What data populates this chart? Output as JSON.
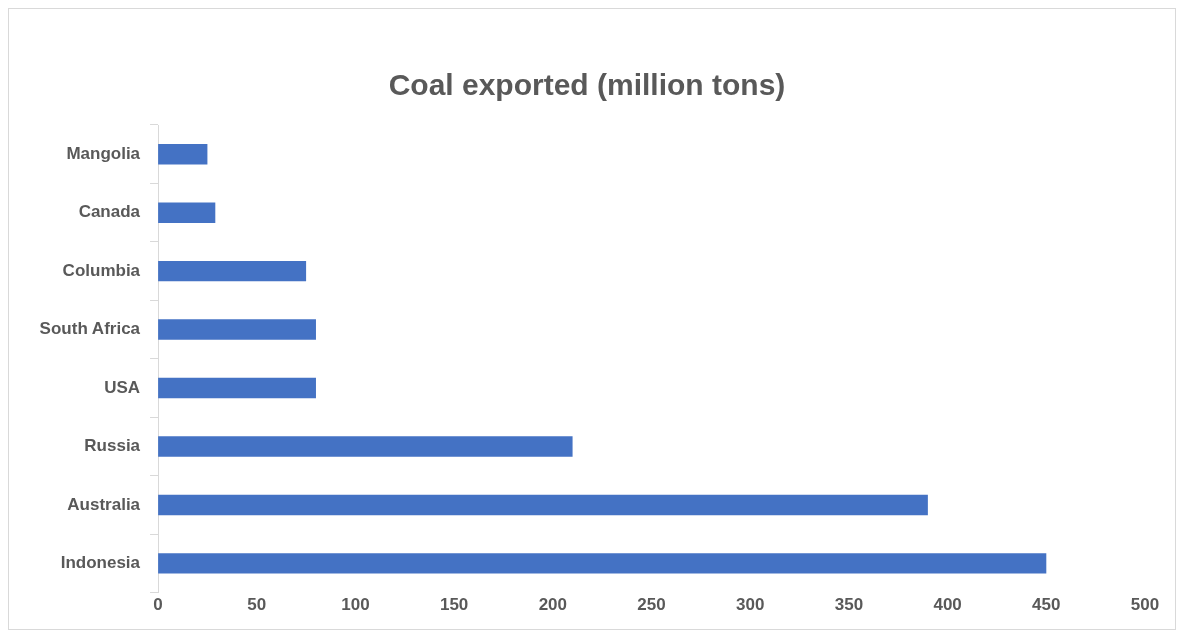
{
  "chart_data": {
    "type": "bar",
    "orientation": "horizontal",
    "title": "Coal exported (million tons)",
    "categories": [
      "Mangolia",
      "Canada",
      "Columbia",
      "South Africa",
      "USA",
      "Russia",
      "Australia",
      "Indonesia"
    ],
    "values": [
      25,
      29,
      75,
      80,
      80,
      210,
      390,
      450
    ],
    "color": "#4472c4",
    "xlim": [
      0,
      500
    ],
    "xticks": [
      0,
      50,
      100,
      150,
      200,
      250,
      300,
      350,
      400,
      450,
      500
    ],
    "grid": false,
    "legend": false
  }
}
